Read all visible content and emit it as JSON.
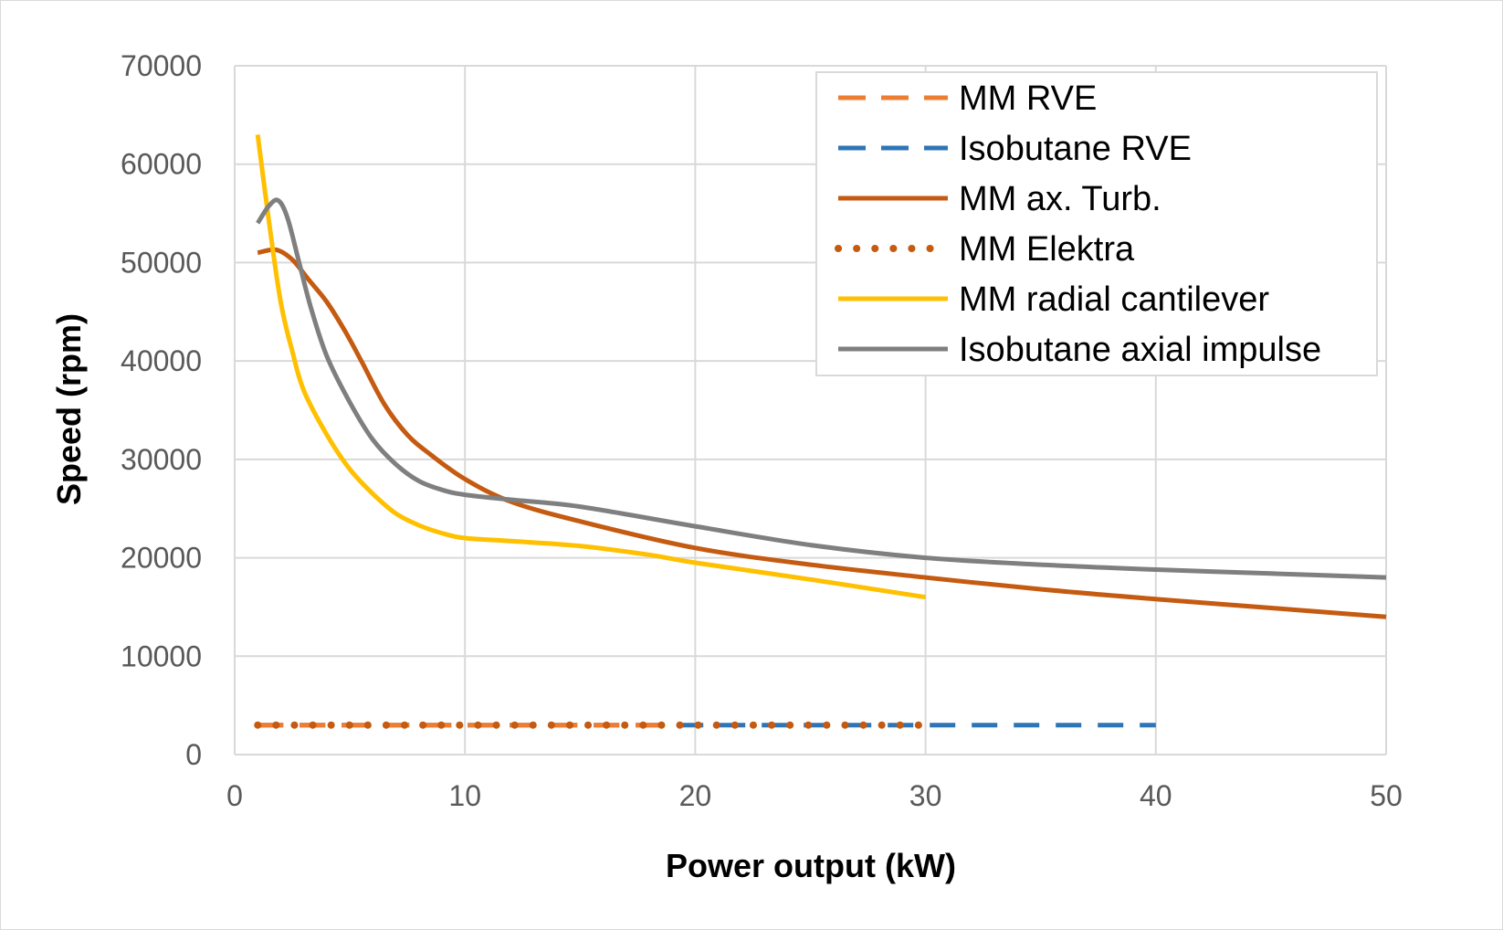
{
  "chart_data": {
    "type": "line",
    "xlabel": "Power output (kW)",
    "ylabel": "Speed  (rpm)",
    "xlim": [
      0,
      50
    ],
    "ylim": [
      0,
      70000
    ],
    "x_ticks": [
      0,
      10,
      20,
      30,
      40,
      50
    ],
    "y_ticks": [
      0,
      10000,
      20000,
      30000,
      40000,
      50000,
      60000,
      70000
    ],
    "grid": true,
    "legend_position": "top-right",
    "series": [
      {
        "name": "MM RVE",
        "color": "#ED7D31",
        "dash": "dashed",
        "x": [
          1,
          19
        ],
        "y": [
          3000,
          3000
        ]
      },
      {
        "name": "Isobutane RVE",
        "color": "#2E75B6",
        "dash": "dashed",
        "x": [
          1,
          40
        ],
        "y": [
          3000,
          3000
        ]
      },
      {
        "name": "MM ax. Turb.",
        "color": "#C55A11",
        "dash": "solid",
        "x": [
          1,
          1.8,
          2.5,
          3.2,
          4,
          4.8,
          5.5,
          6.5,
          7.5,
          8.5,
          10,
          12,
          15,
          20,
          25,
          30,
          35,
          40,
          45,
          50
        ],
        "y": [
          51000,
          51300,
          50300,
          48300,
          46000,
          43000,
          40000,
          35600,
          32500,
          30500,
          28000,
          25700,
          23700,
          21000,
          19300,
          18000,
          16800,
          15800,
          14900,
          14000
        ]
      },
      {
        "name": "MM Elektra",
        "color": "#C55A11",
        "dash": "dotted",
        "x": [
          1,
          30
        ],
        "y": [
          3000,
          3000
        ]
      },
      {
        "name": "MM radial cantilever",
        "color": "#FFC000",
        "dash": "solid",
        "x": [
          1,
          1.5,
          2,
          2.5,
          3,
          4,
          5,
          6,
          7,
          8,
          9,
          10,
          12,
          15,
          18,
          20,
          25,
          30
        ],
        "y": [
          63000,
          54000,
          46000,
          41000,
          37000,
          32500,
          29000,
          26500,
          24500,
          23300,
          22500,
          22000,
          21700,
          21200,
          20300,
          19500,
          17800,
          16000
        ]
      },
      {
        "name": "Isobutane axial impulse",
        "color": "#7F7F7F",
        "dash": "solid",
        "x": [
          1,
          1.5,
          1.9,
          2.3,
          2.8,
          3.3,
          4,
          5,
          6,
          7,
          8,
          9,
          10,
          12,
          15,
          20,
          25,
          30,
          35,
          40,
          45,
          50
        ],
        "y": [
          54000,
          55800,
          56300,
          54500,
          50000,
          45500,
          40500,
          35800,
          32000,
          29500,
          27800,
          26900,
          26400,
          25900,
          25200,
          23200,
          21300,
          20000,
          19300,
          18800,
          18400,
          18000
        ]
      }
    ]
  }
}
